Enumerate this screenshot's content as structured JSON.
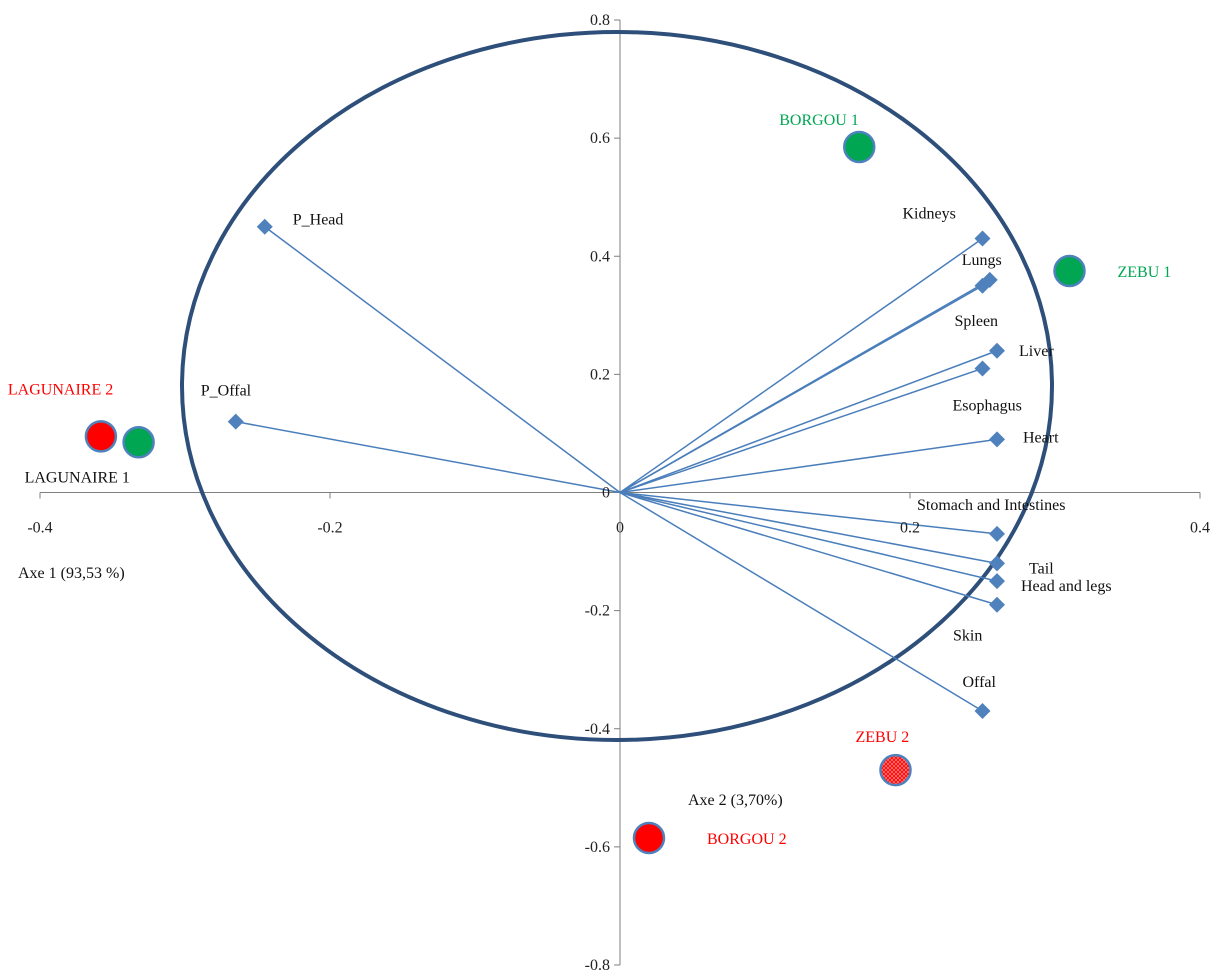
{
  "chart_data": {
    "type": "scatter",
    "title": "",
    "xlabel": "Axe 1 (93,53 %)",
    "ylabel": "Axe 2 (3,70%)",
    "xlim": [
      -0.4,
      0.4
    ],
    "ylim": [
      -0.8,
      0.8
    ],
    "x_ticks": [
      "-0.4",
      "-0.2",
      "0",
      "0.2",
      "0.4"
    ],
    "y_ticks": [
      "0.8",
      "0.6",
      "0.4",
      "0.2",
      "0",
      "-0.2",
      "-0.4",
      "-0.6",
      "-0.8"
    ],
    "grid": false,
    "correlation_circle": true,
    "variables": [
      {
        "name": "P_Head",
        "x": -0.245,
        "y": 0.45
      },
      {
        "name": "P_Offal",
        "x": -0.265,
        "y": 0.12
      },
      {
        "name": "Kidneys",
        "x": 0.25,
        "y": 0.43
      },
      {
        "name": "Lungs",
        "x": 0.255,
        "y": 0.36
      },
      {
        "name": "Spleen",
        "x": 0.25,
        "y": 0.35
      },
      {
        "name": "Liver",
        "x": 0.26,
        "y": 0.24
      },
      {
        "name": "Esophagus",
        "x": 0.25,
        "y": 0.21
      },
      {
        "name": "Heart",
        "x": 0.26,
        "y": 0.09
      },
      {
        "name": "Stomach and Intestines",
        "x": 0.26,
        "y": -0.07
      },
      {
        "name": "Tail",
        "x": 0.26,
        "y": -0.12
      },
      {
        "name": "Head and legs",
        "x": 0.26,
        "y": -0.15
      },
      {
        "name": "Skin",
        "x": 0.26,
        "y": -0.19
      },
      {
        "name": "Offal",
        "x": 0.25,
        "y": -0.37
      }
    ],
    "individuals": [
      {
        "name": "BORGOU 1",
        "x": 0.165,
        "y": 0.585,
        "color": "#00a651",
        "label_color": "#00a651"
      },
      {
        "name": "ZEBU 1",
        "x": 0.31,
        "y": 0.375,
        "color": "#00a651",
        "label_color": "#00a651"
      },
      {
        "name": "LAGUNAIRE 2",
        "x": -0.358,
        "y": 0.095,
        "color": "#ff0000",
        "label_color": "#ff0000"
      },
      {
        "name": "LAGUNAIRE 1",
        "x": -0.332,
        "y": 0.085,
        "color": "#00a651",
        "label_color": "#111111"
      },
      {
        "name": "ZEBU 2",
        "x": 0.19,
        "y": -0.47,
        "color": "#ff0000",
        "label_color": "#ff0000",
        "hatched": true
      },
      {
        "name": "BORGOU 2",
        "x": 0.02,
        "y": -0.585,
        "color": "#ff0000",
        "label_color": "#ff0000"
      }
    ],
    "colors": {
      "vector": "#4a7ebb",
      "marker": "#4f81bd",
      "circle": "#2e4f7a",
      "axis": "#7f7f7f"
    }
  }
}
